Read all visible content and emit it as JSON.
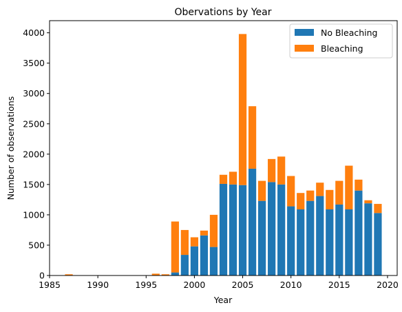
{
  "chart_data": {
    "type": "bar",
    "stacked": true,
    "title": "Obervations by Year",
    "xlabel": "Year",
    "ylabel": "Number of observations",
    "xlim": [
      1985,
      2021
    ],
    "ylim": [
      0,
      4200
    ],
    "xticks": [
      1985,
      1990,
      1995,
      2000,
      2005,
      2010,
      2015,
      2020
    ],
    "yticks": [
      0,
      500,
      1000,
      1500,
      2000,
      2500,
      3000,
      3500,
      4000
    ],
    "grid": false,
    "legend_position": "top-right",
    "x": [
      1987,
      1996,
      1997,
      1998,
      1999,
      2000,
      2001,
      2002,
      2003,
      2004,
      2005,
      2006,
      2007,
      2008,
      2009,
      2010,
      2011,
      2012,
      2013,
      2014,
      2015,
      2016,
      2017,
      2018,
      2019
    ],
    "series": [
      {
        "name": "No Bleaching",
        "color": "#1f77b4",
        "values": [
          0,
          0,
          0,
          50,
          340,
          480,
          660,
          470,
          1510,
          1500,
          1490,
          1760,
          1230,
          1540,
          1500,
          1140,
          1090,
          1230,
          1310,
          1090,
          1170,
          1090,
          1400,
          1190,
          1030
        ]
      },
      {
        "name": "Bleaching",
        "color": "#ff7f0e",
        "values": [
          20,
          30,
          20,
          840,
          410,
          150,
          80,
          530,
          150,
          210,
          2490,
          1030,
          330,
          380,
          460,
          500,
          270,
          170,
          220,
          320,
          390,
          720,
          180,
          50,
          150
        ]
      }
    ]
  }
}
